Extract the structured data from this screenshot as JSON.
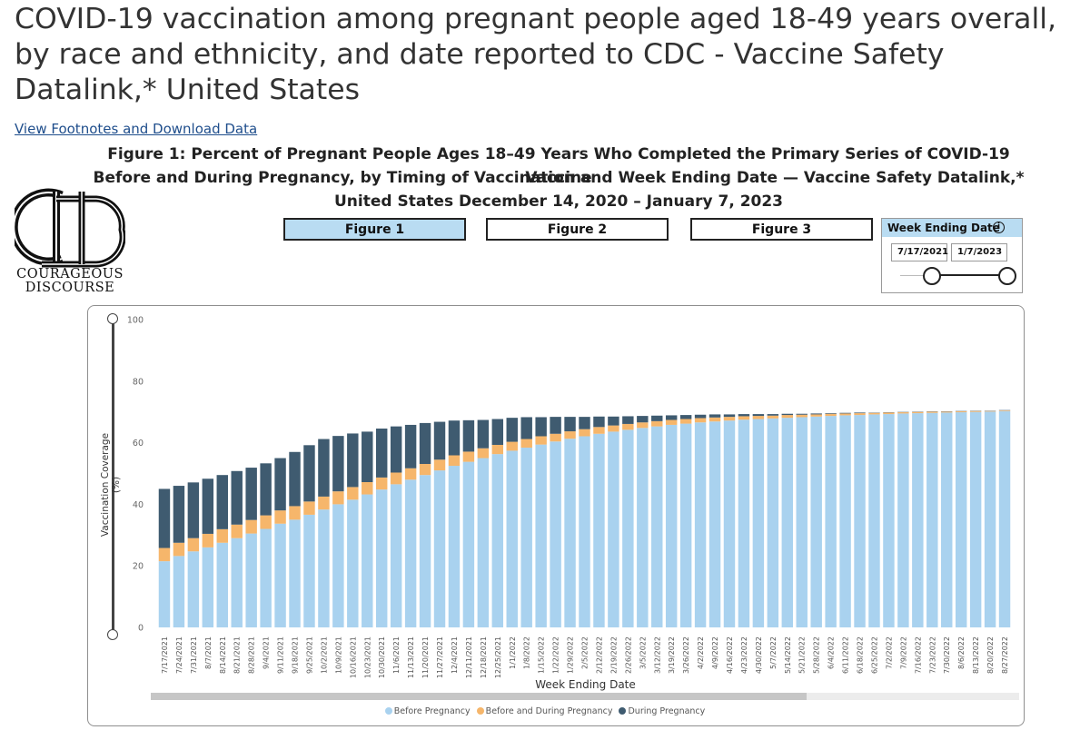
{
  "page": {
    "title": "COVID-19 vaccination among pregnant people aged 18-49 years overall, by race and ethnicity, and date reported to CDC - Vaccine Safety Datalink,* United States",
    "footnote_link": "View Footnotes and Download Data"
  },
  "figure_heading": [
    "Figure 1: Percent of Pregnant People Ages 18–49 Years Who Completed the Primary Series of COVID-19 Vaccine",
    "Before and During Pregnancy, by Timing of Vaccination and Week Ending Date — Vaccine Safety Datalink,*",
    "United States December 14, 2020 – January 7, 2023"
  ],
  "logo": {
    "line1": "COURAGEOUS",
    "line2": "DISCOURSE"
  },
  "figure_tabs": [
    {
      "label": "Figure 1",
      "active": true
    },
    {
      "label": "Figure 2",
      "active": false
    },
    {
      "label": "Figure 3",
      "active": false
    }
  ],
  "slicer": {
    "title": "Week Ending Date",
    "start": "7/17/2021",
    "end": "1/7/2023",
    "handle_start_fraction": 0.3,
    "handle_end_fraction": 1.0
  },
  "colors": {
    "before": "#a9d2ef",
    "before_and_during": "#f6b66b",
    "during": "#3f5b70",
    "accent": "#b9dcf2"
  },
  "scrollbar": {
    "thumb_fraction": 0.755
  },
  "chart_data": {
    "type": "bar",
    "stacked": true,
    "xlabel": "Week Ending Date",
    "ylabel": "Vaccination Coverage (%)",
    "ylim": [
      0,
      100
    ],
    "yticks": [
      0,
      20,
      40,
      60,
      80,
      100
    ],
    "grid": false,
    "legend_position": "bottom",
    "categories": [
      "7/17/2021",
      "7/24/2021",
      "7/31/2021",
      "8/7/2021",
      "8/14/2021",
      "8/21/2021",
      "8/28/2021",
      "9/4/2021",
      "9/11/2021",
      "9/18/2021",
      "9/25/2021",
      "10/2/2021",
      "10/9/2021",
      "10/16/2021",
      "10/23/2021",
      "10/30/2021",
      "11/6/2021",
      "11/13/2021",
      "11/20/2021",
      "11/27/2021",
      "12/4/2021",
      "12/11/2021",
      "12/18/2021",
      "12/25/2021",
      "1/1/2022",
      "1/8/2022",
      "1/15/2022",
      "1/22/2022",
      "1/29/2022",
      "2/5/2022",
      "2/12/2022",
      "2/19/2022",
      "2/26/2022",
      "3/5/2022",
      "3/12/2022",
      "3/19/2022",
      "3/26/2022",
      "4/2/2022",
      "4/9/2022",
      "4/16/2022",
      "4/23/2022",
      "4/30/2022",
      "5/7/2022",
      "5/14/2022",
      "5/21/2022",
      "5/28/2022",
      "6/4/2022",
      "6/11/2022",
      "6/18/2022",
      "6/25/2022",
      "7/2/2022",
      "7/9/2022",
      "7/16/2022",
      "7/23/2022",
      "7/30/2022",
      "8/6/2022",
      "8/13/2022",
      "8/20/2022",
      "8/27/2022"
    ],
    "series": [
      {
        "name": "Before Pregnancy",
        "color": "#a9d2ef",
        "values": [
          21.5,
          23.2,
          24.7,
          26.0,
          27.5,
          29.0,
          30.5,
          32.0,
          33.7,
          35.0,
          36.6,
          38.3,
          40.0,
          41.5,
          43.2,
          44.8,
          46.5,
          48.0,
          49.5,
          51.0,
          52.5,
          53.8,
          55.0,
          56.3,
          57.4,
          58.4,
          59.4,
          60.4,
          61.3,
          62.1,
          62.9,
          63.6,
          64.2,
          64.8,
          65.3,
          65.8,
          66.2,
          66.6,
          66.9,
          67.2,
          67.5,
          67.7,
          67.9,
          68.1,
          68.3,
          68.5,
          68.7,
          68.9,
          69.0,
          69.2,
          69.3,
          69.5,
          69.6,
          69.7,
          69.8,
          69.9,
          70.0,
          70.1,
          70.3
        ]
      },
      {
        "name": "Before and During Pregnancy",
        "color": "#f6b66b",
        "values": [
          4.3,
          4.3,
          4.3,
          4.4,
          4.4,
          4.4,
          4.4,
          4.4,
          4.3,
          4.4,
          4.3,
          4.2,
          4.2,
          4.1,
          4.0,
          3.9,
          3.8,
          3.7,
          3.6,
          3.5,
          3.4,
          3.3,
          3.2,
          3.0,
          2.9,
          2.8,
          2.7,
          2.5,
          2.4,
          2.3,
          2.2,
          2.0,
          1.9,
          1.8,
          1.7,
          1.6,
          1.5,
          1.4,
          1.3,
          1.2,
          1.1,
          1.0,
          0.9,
          0.9,
          0.8,
          0.7,
          0.7,
          0.6,
          0.6,
          0.5,
          0.5,
          0.4,
          0.4,
          0.4,
          0.3,
          0.3,
          0.3,
          0.2,
          0.2
        ]
      },
      {
        "name": "During Pregnancy",
        "color": "#3f5b70",
        "values": [
          19.2,
          18.5,
          18.1,
          17.9,
          17.6,
          17.4,
          17.0,
          16.9,
          17.0,
          17.6,
          18.3,
          18.7,
          18.0,
          17.4,
          16.4,
          15.9,
          15.0,
          14.1,
          13.3,
          12.3,
          11.3,
          10.2,
          9.2,
          8.4,
          7.8,
          7.1,
          6.2,
          5.5,
          4.7,
          4.0,
          3.4,
          2.9,
          2.5,
          2.1,
          1.8,
          1.5,
          1.3,
          1.1,
          1.0,
          0.8,
          0.7,
          0.6,
          0.5,
          0.4,
          0.3,
          0.3,
          0.2,
          0.2,
          0.2,
          0.1,
          0.1,
          0.1,
          0.1,
          0.1,
          0.1,
          0.1,
          0.1,
          0.1,
          0.1
        ]
      }
    ]
  }
}
